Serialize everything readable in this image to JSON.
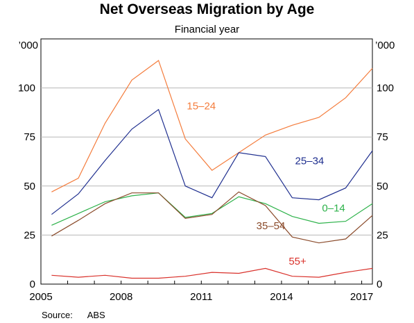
{
  "chart_data": {
    "type": "line",
    "title": "Net Overseas Migration by Age",
    "subtitle": "Financial year",
    "y_unit_left": "’000",
    "y_unit_right": "’000",
    "xlim": [
      2005,
      2017.4
    ],
    "ylim": [
      0,
      125
    ],
    "yticks": [
      0,
      25,
      50,
      75,
      100
    ],
    "xticks": [
      2005,
      2008,
      2011,
      2014,
      2017
    ],
    "grid": true,
    "x": [
      2005.4,
      2006.4,
      2007.4,
      2008.4,
      2009.4,
      2010.4,
      2011.4,
      2012.4,
      2013.4,
      2014.4,
      2015.4,
      2016.4,
      2017.4
    ],
    "series": [
      {
        "name": "15–24",
        "color": "#f47c3c",
        "values": [
          47,
          54,
          82,
          104,
          114,
          74,
          58,
          67,
          76,
          81,
          85,
          95,
          110
        ]
      },
      {
        "name": "25–34",
        "color": "#1f2f8f",
        "values": [
          35.5,
          46,
          63,
          79,
          89,
          50,
          44,
          67,
          65,
          44,
          43,
          49,
          68
        ]
      },
      {
        "name": "0–14",
        "color": "#2db24a",
        "values": [
          30,
          36,
          42,
          45,
          46.5,
          34,
          36,
          44.5,
          41,
          34.5,
          31,
          32,
          41
        ]
      },
      {
        "name": "35–54",
        "color": "#8a4a2a",
        "values": [
          24.5,
          32.5,
          41,
          46.5,
          46.5,
          33.5,
          35.5,
          47,
          40,
          24,
          21,
          23,
          35
        ]
      },
      {
        "name": "55+",
        "color": "#d9302a",
        "values": [
          4.5,
          3.5,
          4.5,
          3,
          3,
          4,
          6,
          5.5,
          8,
          4,
          3.5,
          6,
          8
        ]
      }
    ],
    "source": {
      "label": "Source:",
      "value": "ABS"
    }
  }
}
